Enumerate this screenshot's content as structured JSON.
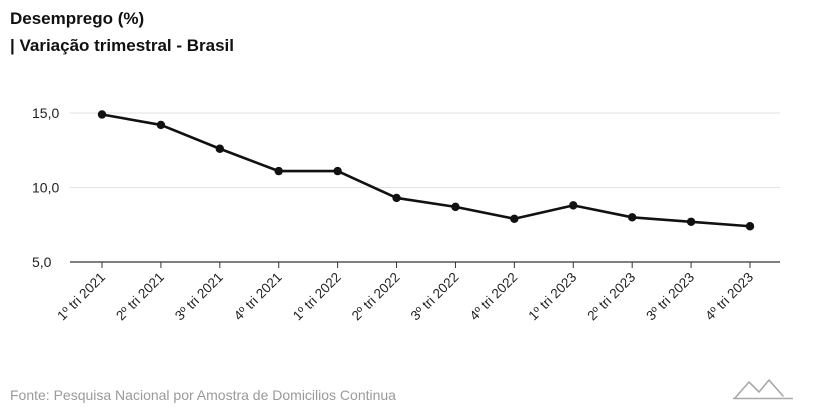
{
  "header": {
    "title": "Desemprego (%)",
    "subtitle": "| Variação trimestral - Brasil"
  },
  "footer": {
    "source": "Fonte: Pesquisa Nacional por Amostra de Domicilios Continua"
  },
  "colors": {
    "line": "#111111",
    "grid": "#e2e2e2",
    "axis": "#333333",
    "tick_text": "#222222",
    "source_text": "#9a9a9a"
  },
  "chart_data": {
    "type": "line",
    "title": "Desemprego (%)",
    "subtitle": "| Variação trimestral - Brasil",
    "xlabel": "",
    "ylabel": "",
    "categories": [
      "1º tri 2021",
      "2º tri 2021",
      "3º tri 2021",
      "4º tri 2021",
      "1º tri 2022",
      "2º tri 2022",
      "3º tri 2022",
      "4º tri 2022",
      "1º tri 2023",
      "2º tri 2023",
      "3º tri 2023",
      "4º tri 2023"
    ],
    "series": [
      {
        "values": [
          14.9,
          14.2,
          12.6,
          11.1,
          11.1,
          9.3,
          8.7,
          7.9,
          8.8,
          8.0,
          7.7,
          7.4
        ]
      }
    ],
    "ylim": [
      5,
      15
    ],
    "yticks": [
      "5,0",
      "10,0",
      "15,0"
    ],
    "grid": true,
    "legend": "none"
  }
}
